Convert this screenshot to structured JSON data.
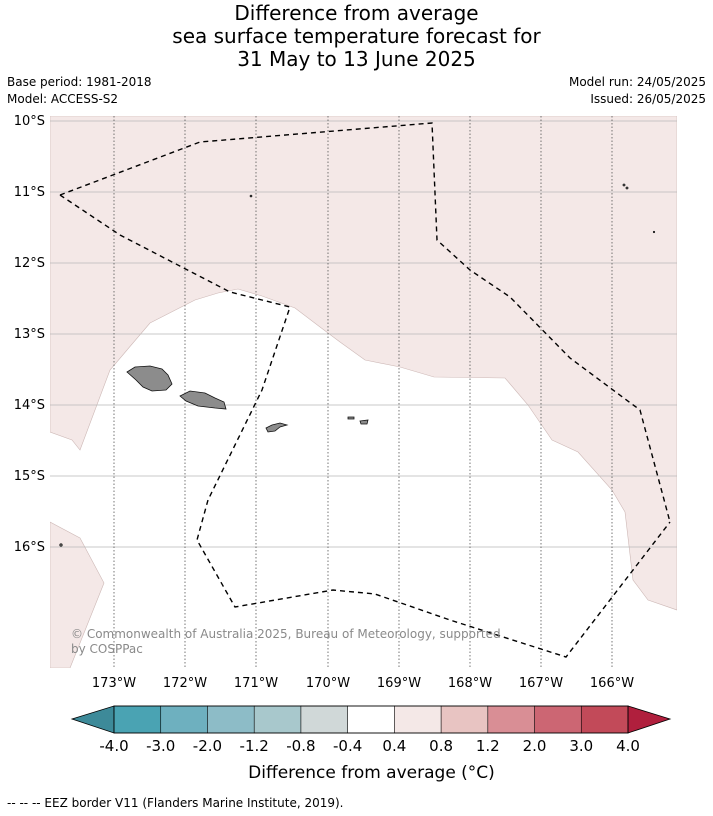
{
  "title": {
    "line1": "Difference from average",
    "line2": "sea surface temperature forecast for",
    "line3": "31 May to 13 June 2025"
  },
  "meta": {
    "base_period": "Base period: 1981-2018",
    "model": "Model: ACCESS-S2",
    "model_run": "Model run: 24/05/2025",
    "issued": "Issued: 26/05/2025"
  },
  "map": {
    "lat_labels": [
      "10°S",
      "11°S",
      "12°S",
      "13°S",
      "14°S",
      "15°S",
      "16°S"
    ],
    "lon_labels": [
      "173°W",
      "172°W",
      "171°W",
      "170°W",
      "169°W",
      "168°W",
      "167°W",
      "166°W"
    ],
    "copyright": {
      "line1": "© Commonwealth of Australia 2025, Bureau of Meteorology, supported",
      "line2": "by COSPPac"
    },
    "colors": {
      "anomaly_0_4_to_0_8": "#f4e8e7",
      "neutral": "#ffffff",
      "land": "#8c8c8c"
    }
  },
  "colorbar": {
    "tick_labels": [
      "-4.0",
      "-3.0",
      "-2.0",
      "-1.2",
      "-0.8",
      "-0.4",
      "0.4",
      "0.8",
      "1.2",
      "2.0",
      "3.0",
      "4.0"
    ],
    "colors": [
      "#3d8a99",
      "#4aa3b3",
      "#6eb0bf",
      "#8dbcc7",
      "#a8c8cc",
      "#d0d8d8",
      "#ffffff",
      "#f4e8e7",
      "#e8c4c2",
      "#d98e95",
      "#cc6673",
      "#c24a59",
      "#b01f3d"
    ],
    "title": "Difference from average (°C)"
  },
  "footnote": "--  --  -- EEZ border V11 (Flanders Marine Institute, 2019)."
}
